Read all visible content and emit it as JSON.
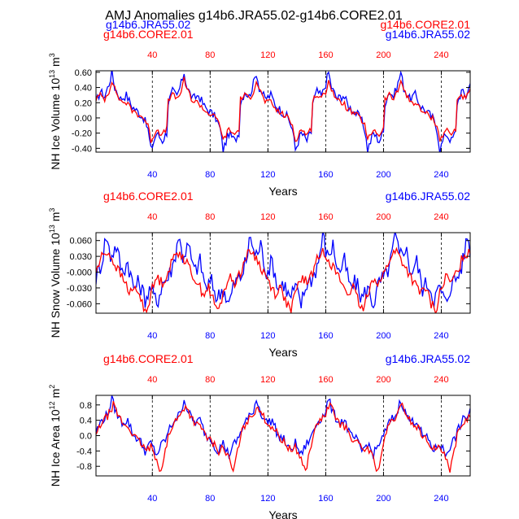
{
  "title": "AMJ Anomalies g14b6.JRA55.02-g14b6.CORE2.01",
  "colors": {
    "jra": "#0000ff",
    "core": "#ff0000",
    "axis": "#000000"
  },
  "chart_data": [
    {
      "type": "line",
      "ylabel_main": "NH Ice Volume 10",
      "ylabel_exp": "13",
      "ylabel_unit": " m",
      "ylabel_unit_exp": "3",
      "xlabel": "Years",
      "xlim": [
        1,
        260
      ],
      "ylim": [
        -0.45,
        0.62
      ],
      "yticks": [
        -0.4,
        -0.2,
        0.0,
        0.2,
        0.4,
        0.6
      ],
      "ytick_labels": [
        "-0.40",
        "-0.20",
        "0.00",
        "0.20",
        "0.40",
        "0.60"
      ],
      "xticks": [
        40,
        80,
        120,
        160,
        200,
        240
      ],
      "xtick_labels": [
        "40",
        "80",
        "120",
        "160",
        "200",
        "240"
      ],
      "top_labels": {
        "left_1": "g14b6.JRA55.02",
        "left_2": "g14b6.CORE2.01",
        "right_1": "g14b6.CORE2.01",
        "right_2": "g14b6.JRA55.02"
      },
      "series": [
        {
          "name": "g14b6.JRA55.02",
          "color": "#0000ff",
          "cycle": [
            [
              0,
              0.2
            ],
            [
              3,
              0.35
            ],
            [
              6,
              0.28
            ],
            [
              9,
              0.45
            ],
            [
              11,
              0.6
            ],
            [
              13,
              0.4
            ],
            [
              17,
              0.25
            ],
            [
              21,
              0.3
            ],
            [
              25,
              0.15
            ],
            [
              29,
              0.08
            ],
            [
              33,
              0.0
            ],
            [
              36,
              -0.15
            ],
            [
              38,
              -0.42
            ],
            [
              42,
              -0.2
            ],
            [
              46,
              -0.3
            ],
            [
              50,
              -0.15
            ]
          ],
          "noise": 0.06
        },
        {
          "name": "g14b6.CORE2.01",
          "color": "#ff0000",
          "cycle": [
            [
              0,
              0.25
            ],
            [
              3,
              0.3
            ],
            [
              6,
              0.25
            ],
            [
              9,
              0.35
            ],
            [
              11,
              0.5
            ],
            [
              13,
              0.38
            ],
            [
              17,
              0.22
            ],
            [
              21,
              0.2
            ],
            [
              25,
              0.1
            ],
            [
              29,
              0.05
            ],
            [
              33,
              0.0
            ],
            [
              36,
              -0.1
            ],
            [
              38,
              -0.3
            ],
            [
              42,
              -0.15
            ],
            [
              46,
              -0.22
            ],
            [
              50,
              -0.12
            ]
          ],
          "noise": 0.04
        }
      ]
    },
    {
      "type": "line",
      "ylabel_main": "NH Snow Volume 10",
      "ylabel_exp": "13",
      "ylabel_unit": " m",
      "ylabel_unit_exp": "3",
      "xlabel": "Years",
      "xlim": [
        1,
        260
      ],
      "ylim": [
        -0.078,
        0.075
      ],
      "yticks": [
        -0.06,
        -0.03,
        0.0,
        0.03,
        0.06
      ],
      "ytick_labels": [
        "-0.060",
        "-0.030",
        "-0.000",
        "0.030",
        "0.060"
      ],
      "xticks": [
        40,
        80,
        120,
        160,
        200,
        240
      ],
      "xtick_labels": [
        "40",
        "80",
        "120",
        "160",
        "200",
        "240"
      ],
      "top_labels": {
        "left_2": "g14b6.CORE2.01",
        "right_2": "g14b6.JRA55.02"
      },
      "series": [
        {
          "name": "g14b6.JRA55.02",
          "color": "#0000ff",
          "cycle": [
            [
              0,
              -0.01
            ],
            [
              4,
              0.02
            ],
            [
              7,
              0.07
            ],
            [
              10,
              0.03
            ],
            [
              14,
              0.05
            ],
            [
              18,
              0.0
            ],
            [
              22,
              0.02
            ],
            [
              26,
              -0.03
            ],
            [
              30,
              -0.02
            ],
            [
              34,
              -0.05
            ],
            [
              38,
              -0.03
            ],
            [
              42,
              -0.06
            ],
            [
              46,
              -0.02
            ],
            [
              50,
              -0.01
            ]
          ],
          "noise": 0.018
        },
        {
          "name": "g14b6.CORE2.01",
          "color": "#ff0000",
          "cycle": [
            [
              0,
              0.0
            ],
            [
              4,
              0.03
            ],
            [
              8,
              0.04
            ],
            [
              12,
              0.02
            ],
            [
              16,
              0.0
            ],
            [
              20,
              -0.02
            ],
            [
              24,
              -0.04
            ],
            [
              28,
              -0.03
            ],
            [
              32,
              -0.06
            ],
            [
              35,
              -0.075
            ],
            [
              38,
              -0.04
            ],
            [
              42,
              -0.01
            ],
            [
              46,
              -0.02
            ],
            [
              50,
              0.0
            ]
          ],
          "noise": 0.01
        }
      ]
    },
    {
      "type": "line",
      "ylabel_main": "NH Ice Area 10",
      "ylabel_exp": "12",
      "ylabel_unit": " m",
      "ylabel_unit_exp": "2",
      "xlabel": "Years",
      "xlim": [
        1,
        260
      ],
      "ylim": [
        -1.05,
        1.05
      ],
      "yticks": [
        -0.8,
        -0.4,
        0.0,
        0.4,
        0.8
      ],
      "ytick_labels": [
        "-0.8",
        "-0.4",
        "0.0",
        "0.4",
        "0.8"
      ],
      "xticks": [
        40,
        80,
        120,
        160,
        200,
        240
      ],
      "xtick_labels": [
        "40",
        "80",
        "120",
        "160",
        "200",
        "240"
      ],
      "top_labels": {
        "left_2": "g14b6.CORE2.01",
        "right_2": "g14b6.JRA55.02"
      },
      "series": [
        {
          "name": "g14b6.JRA55.02",
          "color": "#0000ff",
          "cycle": [
            [
              0,
              0.1
            ],
            [
              4,
              0.4
            ],
            [
              8,
              0.55
            ],
            [
              11,
              0.95
            ],
            [
              14,
              0.6
            ],
            [
              18,
              0.35
            ],
            [
              22,
              0.4
            ],
            [
              26,
              0.0
            ],
            [
              30,
              -0.1
            ],
            [
              34,
              -0.4
            ],
            [
              38,
              -0.2
            ],
            [
              42,
              -0.5
            ],
            [
              46,
              -0.2
            ],
            [
              50,
              0.0
            ]
          ],
          "noise": 0.12
        },
        {
          "name": "g14b6.CORE2.01",
          "color": "#ff0000",
          "cycle": [
            [
              0,
              0.0
            ],
            [
              4,
              0.35
            ],
            [
              8,
              0.5
            ],
            [
              12,
              0.8
            ],
            [
              15,
              0.55
            ],
            [
              19,
              0.3
            ],
            [
              23,
              0.2
            ],
            [
              27,
              -0.05
            ],
            [
              31,
              -0.2
            ],
            [
              35,
              -0.4
            ],
            [
              38,
              -0.3
            ],
            [
              42,
              -0.6
            ],
            [
              45,
              -0.95
            ],
            [
              48,
              -0.4
            ],
            [
              50,
              -0.2
            ]
          ],
          "noise": 0.1
        }
      ]
    }
  ]
}
